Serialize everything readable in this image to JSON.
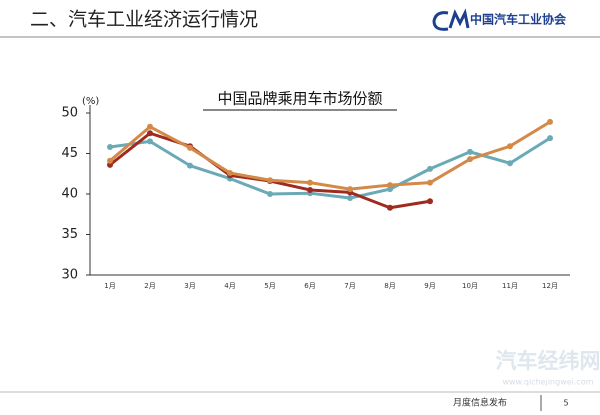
{
  "header": {
    "title": "二、汽车工业经济运行情况",
    "logo_text": "中国汽车工业协会"
  },
  "chart_data": {
    "type": "line",
    "title": "中国品牌乘用车市场份额",
    "y_unit": "(%)",
    "categories": [
      "1月",
      "2月",
      "3月",
      "4月",
      "5月",
      "6月",
      "7月",
      "8月",
      "9月",
      "10月",
      "11月",
      "12月"
    ],
    "series": [
      {
        "color": "#6aa9b6",
        "values": [
          45.8,
          46.5,
          43.5,
          41.9,
          40.0,
          40.1,
          39.5,
          40.6,
          43.1,
          45.2,
          43.8,
          46.9
        ]
      },
      {
        "color": "#9e2b1f",
        "values": [
          43.6,
          47.5,
          45.9,
          42.3,
          41.6,
          40.5,
          40.2,
          38.3,
          39.1,
          null,
          null,
          null
        ]
      },
      {
        "color": "#d38a48",
        "values": [
          44.1,
          48.3,
          45.7,
          42.6,
          41.7,
          41.4,
          40.6,
          41.1,
          41.4,
          44.3,
          45.9,
          48.9
        ]
      }
    ],
    "ylim": [
      30,
      50
    ],
    "yticks": [
      30,
      35,
      40,
      45,
      50
    ]
  },
  "footer": {
    "watermark": "汽车经纬网",
    "watermark_url": "www.qichejingwei.com",
    "label": "月度信息发布",
    "page": "5"
  }
}
